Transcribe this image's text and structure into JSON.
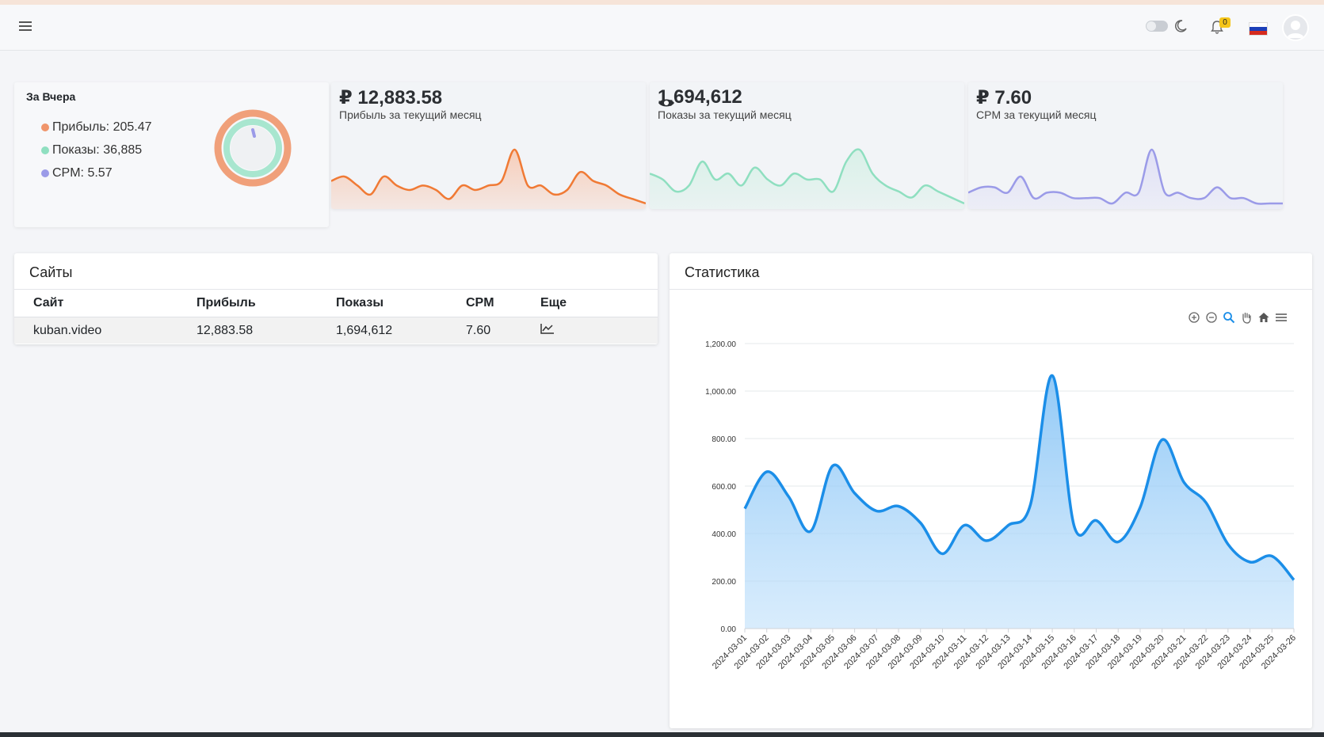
{
  "navbar": {
    "notification_count": "0",
    "language": "ru"
  },
  "yesterday": {
    "title": "За Вчера",
    "items": [
      {
        "label": "Прибыль: 205.47",
        "color": "#f0956b"
      },
      {
        "label": "Показы: 36,885",
        "color": "#8fdfc0"
      },
      {
        "label": "CPM: 5.57",
        "color": "#9b9be8"
      }
    ]
  },
  "stats_cards": [
    {
      "icon": "ruble-icon",
      "value": "₽ 12,883.58",
      "label": "Прибыль за текущий месяц",
      "line_color": "#f07a35",
      "fill_color": "#f7c9b3",
      "spark": [
        5,
        6,
        4,
        2,
        6,
        4,
        3,
        4,
        3,
        1,
        4,
        3,
        4,
        5,
        12,
        4,
        4,
        2,
        3,
        7,
        5,
        4,
        2,
        1,
        0
      ]
    },
    {
      "icon": "eye-icon",
      "value": "1,694,612",
      "label": "Показы за текущий месяц",
      "line_color": "#8fdfc0",
      "fill_color": "#d6f0e6",
      "spark": [
        6,
        5,
        3,
        4,
        8,
        5,
        6,
        4,
        7,
        5,
        4,
        6,
        5,
        5,
        3,
        8,
        10,
        6,
        4,
        3,
        2,
        4,
        3,
        2,
        1
      ]
    },
    {
      "icon": "ruble-icon",
      "value": "₽ 7.60",
      "label": "CPM за текущий месяц",
      "line_color": "#9b9be8",
      "fill_color": "#dedef6",
      "spark": [
        3,
        4,
        4,
        3,
        6,
        2,
        3,
        3,
        2,
        2,
        2,
        1,
        3,
        3,
        11,
        3,
        3,
        2,
        2,
        4,
        2,
        2,
        1,
        1,
        1
      ]
    }
  ],
  "sites": {
    "title": "Сайты",
    "columns": [
      "Сайт",
      "Прибыль",
      "Показы",
      "CPM",
      "Еще"
    ],
    "rows": [
      {
        "site": "kuban.video",
        "profit": "12,883.58",
        "impressions": "1,694,612",
        "cpm": "7.60"
      }
    ]
  },
  "statistics": {
    "title": "Статистика"
  },
  "chart_data": {
    "type": "area",
    "title": "",
    "xlabel": "",
    "ylabel": "",
    "ylim": [
      0,
      1200
    ],
    "yticks": [
      "0.00",
      "200.00",
      "400.00",
      "600.00",
      "800.00",
      "1,000.00",
      "1,200.00"
    ],
    "x": [
      "2024-03-01",
      "2024-03-02",
      "2024-03-03",
      "2024-03-04",
      "2024-03-05",
      "2024-03-06",
      "2024-03-07",
      "2024-03-08",
      "2024-03-09",
      "2024-03-10",
      "2024-03-11",
      "2024-03-12",
      "2024-03-13",
      "2024-03-14",
      "2024-03-15",
      "2024-03-16",
      "2024-03-17",
      "2024-03-18",
      "2024-03-19",
      "2024-03-20",
      "2024-03-21",
      "2024-03-22",
      "2024-03-23",
      "2024-03-24",
      "2024-03-25",
      "2024-03-26"
    ],
    "series": [
      {
        "values": [
          505,
          660,
          555,
          410,
          685,
          570,
          495,
          515,
          445,
          315,
          435,
          370,
          435,
          520,
          1065,
          430,
          455,
          365,
          510,
          795,
          615,
          530,
          355,
          280,
          305,
          205
        ]
      }
    ],
    "line_color": "#1b8ee8",
    "fill_color": "#bfe0fb",
    "grid": true
  }
}
